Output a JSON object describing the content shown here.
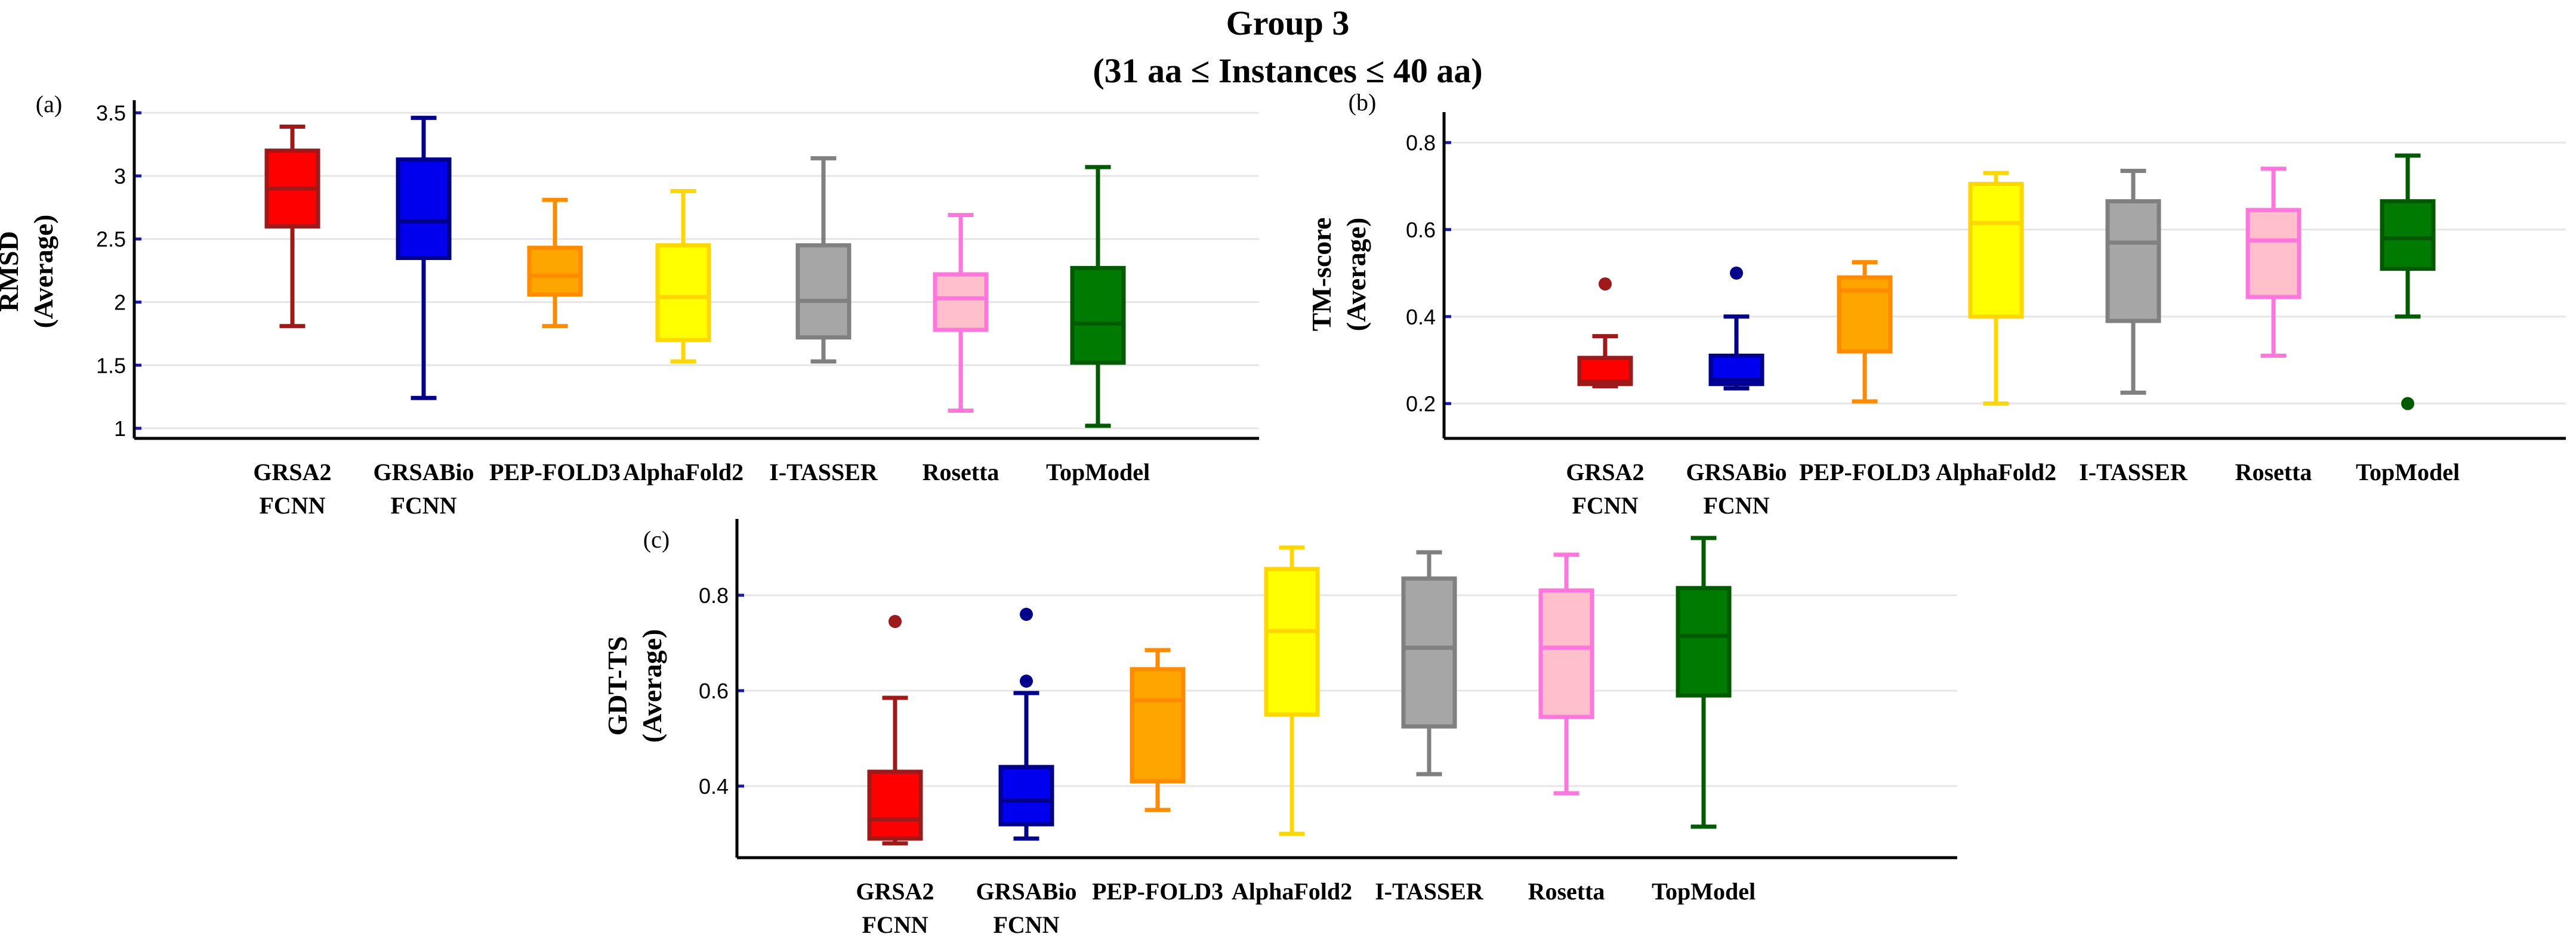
{
  "figure": {
    "title_line1": "Group 3",
    "title_line2": "(31 aa ≤ Instances ≤ 40 aa)"
  },
  "chart_data": [
    {
      "type": "box",
      "panel": "(a)",
      "ylabel_line1": "RMSD",
      "ylabel_line2": "(Average)",
      "ylim": [
        0.92,
        3.6
      ],
      "yticks": [
        1,
        1.5,
        2,
        2.5,
        3,
        3.5
      ],
      "ytick_labels": [
        "1",
        "1.5",
        "2",
        "2.5",
        "3",
        "3.5"
      ],
      "categories": [
        [
          "GRSA2",
          "FCNN"
        ],
        [
          "GRSABio",
          "FCNN"
        ],
        [
          "PEP-FOLD3"
        ],
        [
          "AlphaFold2"
        ],
        [
          "I-TASSER"
        ],
        [
          "Rosetta"
        ],
        [
          "TopModel"
        ]
      ],
      "series": [
        {
          "name": "GRSA2 FCNN",
          "whislo": 1.81,
          "q1": 2.6,
          "med": 2.9,
          "q3": 3.2,
          "whishi": 3.39,
          "outliers": [],
          "fill": "#ff0000",
          "stroke": "#9e1a1a"
        },
        {
          "name": "GRSABio FCNN",
          "whislo": 1.24,
          "q1": 2.35,
          "med": 2.64,
          "q3": 3.13,
          "whishi": 3.46,
          "outliers": [],
          "fill": "#0000ee",
          "stroke": "#00008b"
        },
        {
          "name": "PEP-FOLD3",
          "whislo": 1.81,
          "q1": 2.06,
          "med": 2.21,
          "q3": 2.43,
          "whishi": 2.81,
          "outliers": [],
          "fill": "#ffa500",
          "stroke": "#ff8c00"
        },
        {
          "name": "AlphaFold2",
          "whislo": 1.53,
          "q1": 1.7,
          "med": 2.04,
          "q3": 2.45,
          "whishi": 2.88,
          "outliers": [],
          "fill": "#ffff00",
          "stroke": "#ffd700"
        },
        {
          "name": "I-TASSER",
          "whislo": 1.53,
          "q1": 1.72,
          "med": 2.01,
          "q3": 2.45,
          "whishi": 3.14,
          "outliers": [],
          "fill": "#a6a6a6",
          "stroke": "#808080"
        },
        {
          "name": "Rosetta",
          "whislo": 1.14,
          "q1": 1.78,
          "med": 2.03,
          "q3": 2.22,
          "whishi": 2.69,
          "outliers": [],
          "fill": "#ffc0cb",
          "stroke": "#ff77dd"
        },
        {
          "name": "TopModel",
          "whislo": 1.02,
          "q1": 1.52,
          "med": 1.83,
          "q3": 2.27,
          "whishi": 3.07,
          "outliers": [],
          "fill": "#007a00",
          "stroke": "#005a00"
        }
      ]
    },
    {
      "type": "box",
      "panel": "(b)",
      "ylabel_line1": "TM-score",
      "ylabel_line2": "(Average)",
      "ylim": [
        0.12,
        0.87
      ],
      "yticks": [
        0.2,
        0.4,
        0.6,
        0.8
      ],
      "ytick_labels": [
        "0.2",
        "0.4",
        "0.6",
        "0.8"
      ],
      "categories": [
        [
          "GRSA2",
          "FCNN"
        ],
        [
          "GRSABio",
          "FCNN"
        ],
        [
          "PEP-FOLD3"
        ],
        [
          "AlphaFold2"
        ],
        [
          "I-TASSER"
        ],
        [
          "Rosetta"
        ],
        [
          "TopModel"
        ]
      ],
      "series": [
        {
          "name": "GRSA2 FCNN",
          "whislo": 0.24,
          "q1": 0.245,
          "med": 0.25,
          "q3": 0.305,
          "whishi": 0.355,
          "outliers": [
            0.475
          ],
          "fill": "#ff0000",
          "stroke": "#9e1a1a"
        },
        {
          "name": "GRSABio FCNN",
          "whislo": 0.235,
          "q1": 0.245,
          "med": 0.255,
          "q3": 0.31,
          "whishi": 0.4,
          "outliers": [
            0.5
          ],
          "fill": "#0000ee",
          "stroke": "#00008b"
        },
        {
          "name": "PEP-FOLD3",
          "whislo": 0.205,
          "q1": 0.32,
          "med": 0.46,
          "q3": 0.49,
          "whishi": 0.525,
          "outliers": [],
          "fill": "#ffa500",
          "stroke": "#ff8c00"
        },
        {
          "name": "AlphaFold2",
          "whislo": 0.2,
          "q1": 0.4,
          "med": 0.615,
          "q3": 0.705,
          "whishi": 0.73,
          "outliers": [],
          "fill": "#ffff00",
          "stroke": "#ffd700"
        },
        {
          "name": "I-TASSER",
          "whislo": 0.225,
          "q1": 0.39,
          "med": 0.57,
          "q3": 0.665,
          "whishi": 0.735,
          "outliers": [],
          "fill": "#a6a6a6",
          "stroke": "#808080"
        },
        {
          "name": "Rosetta",
          "whislo": 0.31,
          "q1": 0.445,
          "med": 0.575,
          "q3": 0.645,
          "whishi": 0.74,
          "outliers": [],
          "fill": "#ffc0cb",
          "stroke": "#ff77dd"
        },
        {
          "name": "TopModel",
          "whislo": 0.4,
          "q1": 0.51,
          "med": 0.58,
          "q3": 0.665,
          "whishi": 0.77,
          "outliers": [
            0.2
          ],
          "fill": "#007a00",
          "stroke": "#005a00"
        }
      ]
    },
    {
      "type": "box",
      "panel": "(c)",
      "ylabel_line1": "GDT-TS",
      "ylabel_line2": "(Average)",
      "ylim": [
        0.25,
        0.96
      ],
      "yticks": [
        0.4,
        0.6,
        0.8
      ],
      "ytick_labels": [
        "0.4",
        "0.6",
        "0.8"
      ],
      "categories": [
        [
          "GRSA2",
          "FCNN"
        ],
        [
          "GRSABio",
          "FCNN"
        ],
        [
          "PEP-FOLD3"
        ],
        [
          "AlphaFold2"
        ],
        [
          "I-TASSER"
        ],
        [
          "Rosetta"
        ],
        [
          "TopModel"
        ]
      ],
      "series": [
        {
          "name": "GRSA2 FCNN",
          "whislo": 0.28,
          "q1": 0.29,
          "med": 0.33,
          "q3": 0.43,
          "whishi": 0.585,
          "outliers": [
            0.745
          ],
          "fill": "#ff0000",
          "stroke": "#9e1a1a"
        },
        {
          "name": "GRSABio FCNN",
          "whislo": 0.29,
          "q1": 0.32,
          "med": 0.37,
          "q3": 0.44,
          "whishi": 0.595,
          "outliers": [
            0.62,
            0.76
          ],
          "fill": "#0000ee",
          "stroke": "#00008b"
        },
        {
          "name": "PEP-FOLD3",
          "whislo": 0.35,
          "q1": 0.41,
          "med": 0.58,
          "q3": 0.645,
          "whishi": 0.685,
          "outliers": [],
          "fill": "#ffa500",
          "stroke": "#ff8c00"
        },
        {
          "name": "AlphaFold2",
          "whislo": 0.3,
          "q1": 0.55,
          "med": 0.725,
          "q3": 0.855,
          "whishi": 0.9,
          "outliers": [],
          "fill": "#ffff00",
          "stroke": "#ffd700"
        },
        {
          "name": "I-TASSER",
          "whislo": 0.425,
          "q1": 0.525,
          "med": 0.69,
          "q3": 0.835,
          "whishi": 0.89,
          "outliers": [],
          "fill": "#a6a6a6",
          "stroke": "#808080"
        },
        {
          "name": "Rosetta",
          "whislo": 0.385,
          "q1": 0.545,
          "med": 0.69,
          "q3": 0.81,
          "whishi": 0.885,
          "outliers": [],
          "fill": "#ffc0cb",
          "stroke": "#ff77dd"
        },
        {
          "name": "TopModel",
          "whislo": 0.315,
          "q1": 0.59,
          "med": 0.715,
          "q3": 0.815,
          "whishi": 0.92,
          "outliers": [],
          "fill": "#007a00",
          "stroke": "#005a00"
        }
      ]
    }
  ]
}
